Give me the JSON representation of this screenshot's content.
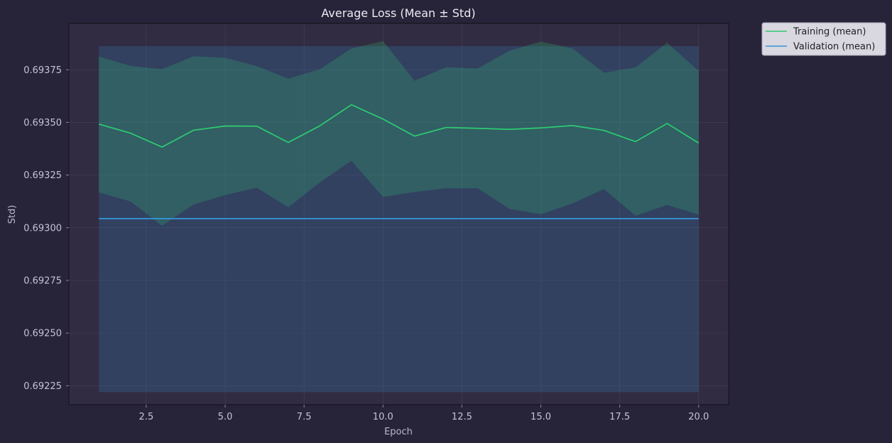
{
  "chart_data": {
    "type": "line",
    "title": "Average Loss (Mean ± Std)",
    "xlabel": "Epoch",
    "ylabel": "Std)",
    "xlim": [
      0.05,
      20.95
    ],
    "ylim": [
      0.69216,
      0.69397
    ],
    "xticks": [
      2.5,
      5.0,
      7.5,
      10.0,
      12.5,
      15.0,
      17.5,
      20.0
    ],
    "xtick_labels": [
      "2.5",
      "5.0",
      "7.5",
      "10.0",
      "12.5",
      "15.0",
      "17.5",
      "20.0"
    ],
    "yticks": [
      0.69225,
      0.6925,
      0.69275,
      0.693,
      0.69325,
      0.6935,
      0.69375
    ],
    "ytick_labels": [
      "0.69225",
      "0.69250",
      "0.69275",
      "0.69300",
      "0.69325",
      "0.69350",
      "0.69375"
    ],
    "grid": true,
    "legend_position": "outside-top-right",
    "x": [
      1,
      2,
      3,
      4,
      5,
      6,
      7,
      8,
      9,
      10,
      11,
      12,
      13,
      14,
      15,
      16,
      17,
      18,
      19,
      20
    ],
    "series": [
      {
        "name": "Training (mean)",
        "color": "#2ecc71",
        "values": [
          0.693492,
          0.693449,
          0.693383,
          0.693463,
          0.693483,
          0.693482,
          0.693405,
          0.693484,
          0.693584,
          0.693516,
          0.693435,
          0.693476,
          0.693472,
          0.693467,
          0.693474,
          0.693485,
          0.693462,
          0.693409,
          0.693495,
          0.693402
        ],
        "upper": [
          0.693813,
          0.693768,
          0.693753,
          0.693814,
          0.693807,
          0.693767,
          0.693708,
          0.693752,
          0.693851,
          0.693886,
          0.693698,
          0.693762,
          0.693756,
          0.69384,
          0.693884,
          0.693851,
          0.693736,
          0.693761,
          0.693879,
          0.693744
        ],
        "lower": [
          0.693168,
          0.693125,
          0.69301,
          0.69311,
          0.693155,
          0.69319,
          0.693097,
          0.693215,
          0.693318,
          0.693146,
          0.69317,
          0.693187,
          0.693187,
          0.69309,
          0.693064,
          0.693115,
          0.693184,
          0.693057,
          0.693108,
          0.693063
        ]
      },
      {
        "name": "Validation (mean)",
        "color": "#3498db",
        "values": [
          0.693043,
          0.693043,
          0.693043,
          0.693043,
          0.693043,
          0.693043,
          0.693043,
          0.693043,
          0.693043,
          0.693043,
          0.693043,
          0.693043,
          0.693043,
          0.693043,
          0.693043,
          0.693043,
          0.693043,
          0.693043,
          0.693043,
          0.693043
        ],
        "upper": [
          0.693862,
          0.693862,
          0.693862,
          0.693862,
          0.693862,
          0.693862,
          0.693862,
          0.693862,
          0.693862,
          0.693862,
          0.693862,
          0.693862,
          0.693862,
          0.693862,
          0.693862,
          0.693862,
          0.693862,
          0.693862,
          0.693862,
          0.693862
        ],
        "lower": [
          0.69222,
          0.69222,
          0.69222,
          0.69222,
          0.69222,
          0.69222,
          0.69222,
          0.69222,
          0.69222,
          0.69222,
          0.69222,
          0.69222,
          0.69222,
          0.69222,
          0.69222,
          0.69222,
          0.69222,
          0.69222,
          0.69222,
          0.69222
        ]
      }
    ]
  }
}
